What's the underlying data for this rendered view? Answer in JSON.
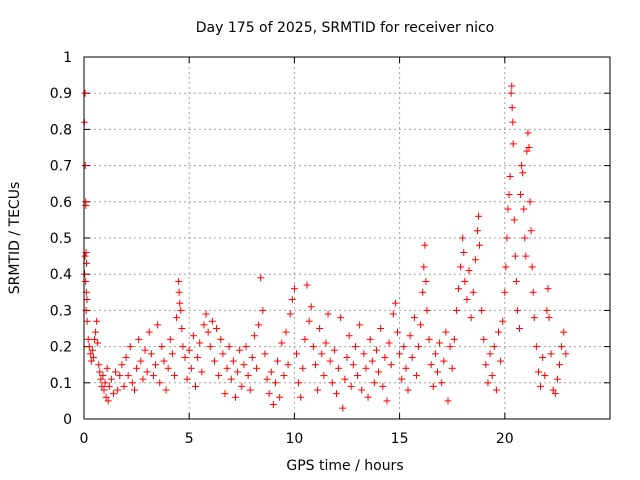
{
  "chart_data": {
    "type": "scatter",
    "title": "Day 175 of 2025, SRMTID for receiver nico",
    "xlabel": "GPS time / hours",
    "ylabel": "SRMTID / TECUs",
    "xlim": [
      0,
      25
    ],
    "ylim": [
      0,
      1
    ],
    "xticks": [
      0,
      5,
      10,
      15,
      20
    ],
    "xtick_labels": [
      "0",
      "5",
      "10",
      "15",
      "20"
    ],
    "yticks": [
      0,
      0.1,
      0.2,
      0.3,
      0.4,
      0.5,
      0.6,
      0.7,
      0.8,
      0.9,
      1
    ],
    "ytick_labels": [
      "0",
      "0.1",
      "0.2",
      "0.3",
      "0.4",
      "0.5",
      "0.6",
      "0.7",
      "0.8",
      "0.9",
      "1"
    ],
    "grid": true,
    "marker": "+",
    "color": "#ff0000",
    "series": [
      {
        "name": "SRMTID",
        "points": [
          [
            0.02,
            0.82
          ],
          [
            0.05,
            0.9
          ],
          [
            0.06,
            0.7
          ],
          [
            0.08,
            0.6
          ],
          [
            0.09,
            0.59
          ],
          [
            0.05,
            0.45
          ],
          [
            0.1,
            0.46
          ],
          [
            0.12,
            0.43
          ],
          [
            0.03,
            0.4
          ],
          [
            0.08,
            0.38
          ],
          [
            0.11,
            0.35
          ],
          [
            0.14,
            0.33
          ],
          [
            0.1,
            0.3
          ],
          [
            0.15,
            0.27
          ],
          [
            0.2,
            0.22
          ],
          [
            0.25,
            0.2
          ],
          [
            0.3,
            0.18
          ],
          [
            0.35,
            0.16
          ],
          [
            0.4,
            0.19
          ],
          [
            0.45,
            0.17
          ],
          [
            0.5,
            0.22
          ],
          [
            0.55,
            0.24
          ],
          [
            0.6,
            0.27
          ],
          [
            0.65,
            0.21
          ],
          [
            0.7,
            0.15
          ],
          [
            0.75,
            0.13
          ],
          [
            0.8,
            0.11
          ],
          [
            0.85,
            0.09
          ],
          [
            0.9,
            0.12
          ],
          [
            0.95,
            0.08
          ],
          [
            1.0,
            0.1
          ],
          [
            1.05,
            0.06
          ],
          [
            1.1,
            0.14
          ],
          [
            1.15,
            0.05
          ],
          [
            1.2,
            0.09
          ],
          [
            1.3,
            0.11
          ],
          [
            1.4,
            0.07
          ],
          [
            1.5,
            0.13
          ],
          [
            1.6,
            0.08
          ],
          [
            1.7,
            0.12
          ],
          [
            1.8,
            0.15
          ],
          [
            1.9,
            0.09
          ],
          [
            2.0,
            0.17
          ],
          [
            2.1,
            0.12
          ],
          [
            2.2,
            0.2
          ],
          [
            2.3,
            0.1
          ],
          [
            2.4,
            0.08
          ],
          [
            2.5,
            0.14
          ],
          [
            2.6,
            0.22
          ],
          [
            2.7,
            0.16
          ],
          [
            2.8,
            0.11
          ],
          [
            2.9,
            0.19
          ],
          [
            3.0,
            0.13
          ],
          [
            3.1,
            0.24
          ],
          [
            3.2,
            0.18
          ],
          [
            3.3,
            0.12
          ],
          [
            3.4,
            0.15
          ],
          [
            3.5,
            0.26
          ],
          [
            3.6,
            0.1
          ],
          [
            3.7,
            0.2
          ],
          [
            3.8,
            0.16
          ],
          [
            3.9,
            0.08
          ],
          [
            4.0,
            0.14
          ],
          [
            4.1,
            0.22
          ],
          [
            4.2,
            0.18
          ],
          [
            4.3,
            0.12
          ],
          [
            4.4,
            0.28
          ],
          [
            4.5,
            0.38
          ],
          [
            4.52,
            0.35
          ],
          [
            4.55,
            0.32
          ],
          [
            4.6,
            0.3
          ],
          [
            4.65,
            0.25
          ],
          [
            4.7,
            0.2
          ],
          [
            4.8,
            0.17
          ],
          [
            4.9,
            0.11
          ],
          [
            5.0,
            0.19
          ],
          [
            5.1,
            0.14
          ],
          [
            5.2,
            0.23
          ],
          [
            5.3,
            0.09
          ],
          [
            5.4,
            0.17
          ],
          [
            5.5,
            0.21
          ],
          [
            5.6,
            0.13
          ],
          [
            5.7,
            0.26
          ],
          [
            5.8,
            0.29
          ],
          [
            5.9,
            0.24
          ],
          [
            6.0,
            0.2
          ],
          [
            6.1,
            0.27
          ],
          [
            6.2,
            0.16
          ],
          [
            6.3,
            0.25
          ],
          [
            6.4,
            0.12
          ],
          [
            6.5,
            0.22
          ],
          [
            6.6,
            0.18
          ],
          [
            6.7,
            0.07
          ],
          [
            6.8,
            0.14
          ],
          [
            6.9,
            0.2
          ],
          [
            7.0,
            0.11
          ],
          [
            7.1,
            0.16
          ],
          [
            7.2,
            0.06
          ],
          [
            7.3,
            0.13
          ],
          [
            7.4,
            0.19
          ],
          [
            7.5,
            0.09
          ],
          [
            7.6,
            0.15
          ],
          [
            7.7,
            0.2
          ],
          [
            7.8,
            0.12
          ],
          [
            7.9,
            0.08
          ],
          [
            8.0,
            0.17
          ],
          [
            8.1,
            0.23
          ],
          [
            8.2,
            0.14
          ],
          [
            8.3,
            0.26
          ],
          [
            8.4,
            0.39
          ],
          [
            8.5,
            0.3
          ],
          [
            8.6,
            0.18
          ],
          [
            8.7,
            0.11
          ],
          [
            8.8,
            0.07
          ],
          [
            8.9,
            0.13
          ],
          [
            9.0,
            0.04
          ],
          [
            9.1,
            0.1
          ],
          [
            9.2,
            0.16
          ],
          [
            9.3,
            0.06
          ],
          [
            9.4,
            0.21
          ],
          [
            9.5,
            0.12
          ],
          [
            9.6,
            0.24
          ],
          [
            9.7,
            0.15
          ],
          [
            9.8,
            0.29
          ],
          [
            9.9,
            0.33
          ],
          [
            10.0,
            0.36
          ],
          [
            10.1,
            0.18
          ],
          [
            10.2,
            0.1
          ],
          [
            10.3,
            0.06
          ],
          [
            10.4,
            0.14
          ],
          [
            10.5,
            0.22
          ],
          [
            10.6,
            0.37
          ],
          [
            10.7,
            0.27
          ],
          [
            10.8,
            0.31
          ],
          [
            10.9,
            0.2
          ],
          [
            11.0,
            0.15
          ],
          [
            11.1,
            0.08
          ],
          [
            11.2,
            0.25
          ],
          [
            11.3,
            0.18
          ],
          [
            11.4,
            0.12
          ],
          [
            11.5,
            0.21
          ],
          [
            11.6,
            0.29
          ],
          [
            11.7,
            0.16
          ],
          [
            11.8,
            0.1
          ],
          [
            11.9,
            0.19
          ],
          [
            12.0,
            0.07
          ],
          [
            12.1,
            0.14
          ],
          [
            12.2,
            0.28
          ],
          [
            12.3,
            0.03
          ],
          [
            12.4,
            0.11
          ],
          [
            12.5,
            0.17
          ],
          [
            12.6,
            0.23
          ],
          [
            12.7,
            0.09
          ],
          [
            12.8,
            0.15
          ],
          [
            12.9,
            0.2
          ],
          [
            13.0,
            0.12
          ],
          [
            13.1,
            0.26
          ],
          [
            13.2,
            0.08
          ],
          [
            13.3,
            0.18
          ],
          [
            13.4,
            0.14
          ],
          [
            13.5,
            0.06
          ],
          [
            13.6,
            0.22
          ],
          [
            13.7,
            0.16
          ],
          [
            13.8,
            0.1
          ],
          [
            13.9,
            0.19
          ],
          [
            14.0,
            0.13
          ],
          [
            14.1,
            0.25
          ],
          [
            14.2,
            0.09
          ],
          [
            14.3,
            0.17
          ],
          [
            14.4,
            0.05
          ],
          [
            14.5,
            0.21
          ],
          [
            14.6,
            0.15
          ],
          [
            14.7,
            0.29
          ],
          [
            14.8,
            0.32
          ],
          [
            14.9,
            0.24
          ],
          [
            15.0,
            0.18
          ],
          [
            15.1,
            0.11
          ],
          [
            15.2,
            0.2
          ],
          [
            15.3,
            0.14
          ],
          [
            15.4,
            0.08
          ],
          [
            15.5,
            0.23
          ],
          [
            15.6,
            0.17
          ],
          [
            15.7,
            0.28
          ],
          [
            15.8,
            0.12
          ],
          [
            15.9,
            0.2
          ],
          [
            16.0,
            0.26
          ],
          [
            16.1,
            0.35
          ],
          [
            16.15,
            0.42
          ],
          [
            16.2,
            0.48
          ],
          [
            16.25,
            0.38
          ],
          [
            16.3,
            0.3
          ],
          [
            16.4,
            0.22
          ],
          [
            16.5,
            0.15
          ],
          [
            16.6,
            0.09
          ],
          [
            16.7,
            0.18
          ],
          [
            16.8,
            0.13
          ],
          [
            16.9,
            0.21
          ],
          [
            17.0,
            0.1
          ],
          [
            17.1,
            0.16
          ],
          [
            17.2,
            0.24
          ],
          [
            17.3,
            0.05
          ],
          [
            17.4,
            0.2
          ],
          [
            17.5,
            0.14
          ],
          [
            17.6,
            0.22
          ],
          [
            17.7,
            0.3
          ],
          [
            17.8,
            0.36
          ],
          [
            17.9,
            0.42
          ],
          [
            18.0,
            0.5
          ],
          [
            18.05,
            0.46
          ],
          [
            18.1,
            0.38
          ],
          [
            18.2,
            0.33
          ],
          [
            18.3,
            0.41
          ],
          [
            18.4,
            0.28
          ],
          [
            18.5,
            0.35
          ],
          [
            18.6,
            0.44
          ],
          [
            18.7,
            0.52
          ],
          [
            18.75,
            0.56
          ],
          [
            18.8,
            0.48
          ],
          [
            18.9,
            0.3
          ],
          [
            19.0,
            0.22
          ],
          [
            19.1,
            0.15
          ],
          [
            19.2,
            0.1
          ],
          [
            19.3,
            0.18
          ],
          [
            19.4,
            0.12
          ],
          [
            19.5,
            0.2
          ],
          [
            19.6,
            0.08
          ],
          [
            19.7,
            0.24
          ],
          [
            19.8,
            0.16
          ],
          [
            19.9,
            0.27
          ],
          [
            20.0,
            0.35
          ],
          [
            20.05,
            0.42
          ],
          [
            20.1,
            0.5
          ],
          [
            20.15,
            0.58
          ],
          [
            20.2,
            0.62
          ],
          [
            20.25,
            0.67
          ],
          [
            20.3,
            0.9
          ],
          [
            20.33,
            0.92
          ],
          [
            20.35,
            0.86
          ],
          [
            20.38,
            0.82
          ],
          [
            20.4,
            0.76
          ],
          [
            20.45,
            0.55
          ],
          [
            20.5,
            0.45
          ],
          [
            20.55,
            0.38
          ],
          [
            20.6,
            0.3
          ],
          [
            20.7,
            0.25
          ],
          [
            20.75,
            0.62
          ],
          [
            20.8,
            0.7
          ],
          [
            20.85,
            0.68
          ],
          [
            20.9,
            0.58
          ],
          [
            20.95,
            0.5
          ],
          [
            21.0,
            0.45
          ],
          [
            21.05,
            0.74
          ],
          [
            21.1,
            0.79
          ],
          [
            21.15,
            0.75
          ],
          [
            21.2,
            0.6
          ],
          [
            21.25,
            0.52
          ],
          [
            21.3,
            0.42
          ],
          [
            21.35,
            0.35
          ],
          [
            21.4,
            0.28
          ],
          [
            21.5,
            0.2
          ],
          [
            21.6,
            0.13
          ],
          [
            21.7,
            0.09
          ],
          [
            21.8,
            0.17
          ],
          [
            21.9,
            0.12
          ],
          [
            22.0,
            0.3
          ],
          [
            22.05,
            0.36
          ],
          [
            22.1,
            0.28
          ],
          [
            22.2,
            0.18
          ],
          [
            22.3,
            0.08
          ],
          [
            22.4,
            0.07
          ],
          [
            22.5,
            0.11
          ],
          [
            22.6,
            0.15
          ],
          [
            22.7,
            0.2
          ],
          [
            22.8,
            0.24
          ],
          [
            22.9,
            0.18
          ]
        ]
      }
    ]
  }
}
